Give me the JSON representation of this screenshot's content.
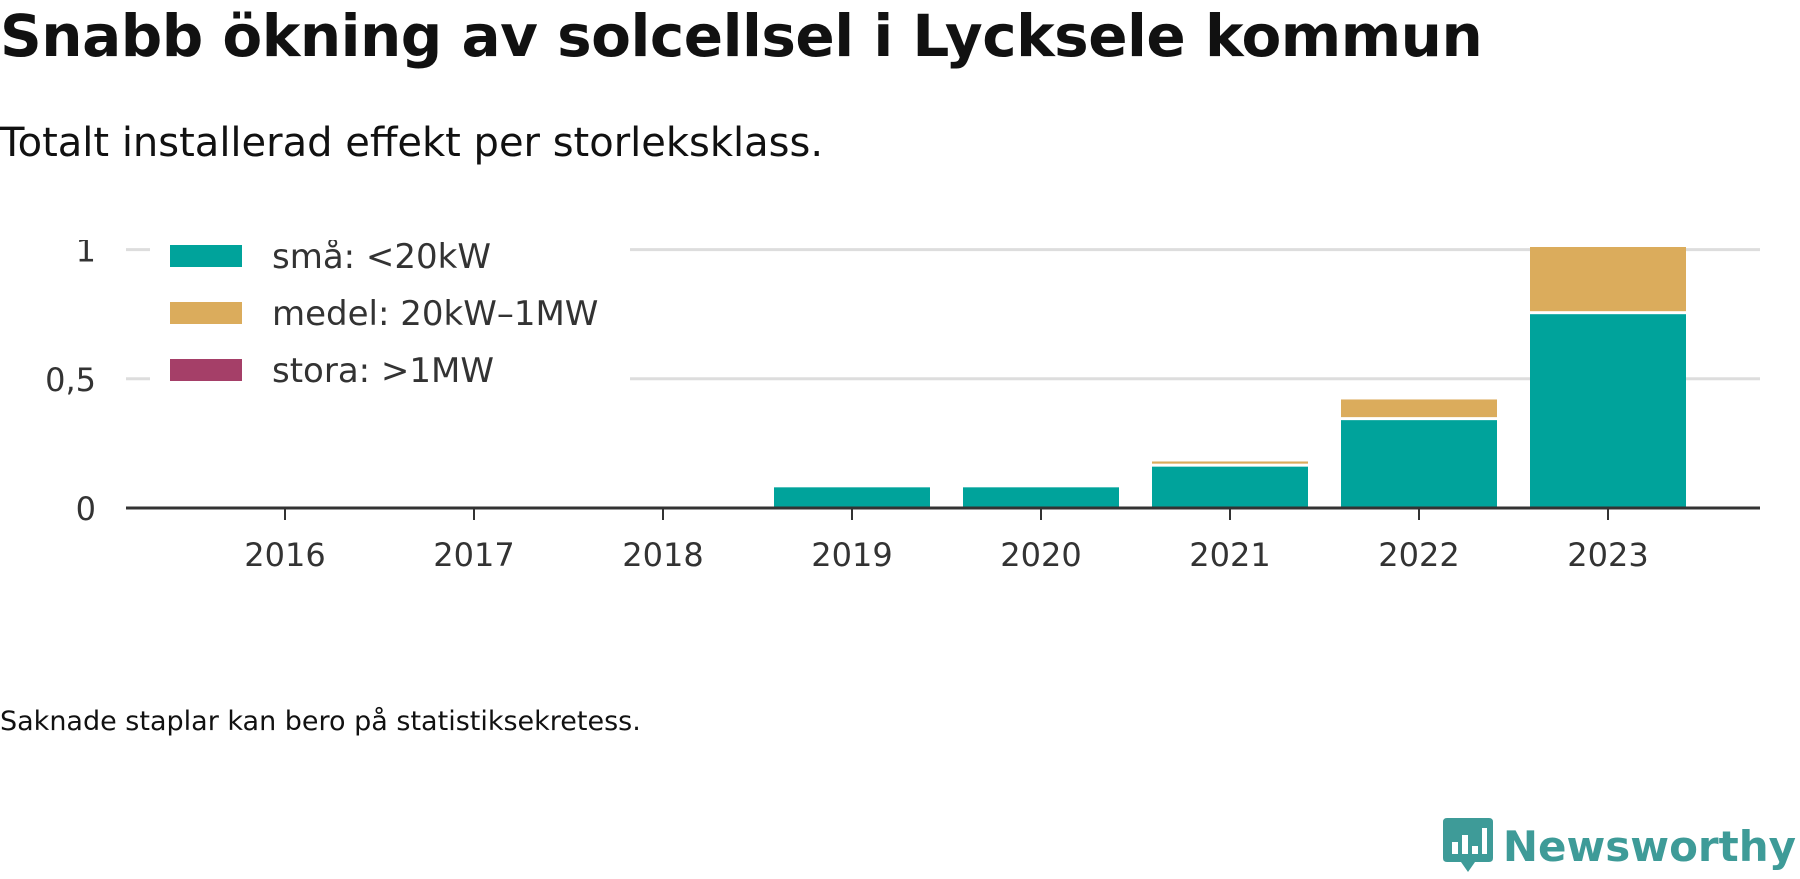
{
  "title": "Snabb ökning av solcellsel i Lycksele kommun",
  "subtitle": "Totalt installerad effekt per storleksklass.",
  "note": "Saknade staplar kan bero på statistiksekretess.",
  "brand": {
    "name": "Newsworthy",
    "color": "#3e9b98",
    "icon": "newsworthy-logo-icon"
  },
  "chart_data": {
    "type": "bar",
    "stacked": true,
    "categories": [
      "2016",
      "2017",
      "2018",
      "2019",
      "2020",
      "2021",
      "2022",
      "2023"
    ],
    "series": [
      {
        "name": "små: <20kW",
        "color": "#00a39b",
        "values": [
          0,
          0,
          0,
          0.08,
          0.08,
          0.16,
          0.34,
          0.75
        ]
      },
      {
        "name": "medel: 20kW–1MW",
        "color": "#dbac5c",
        "values": [
          0,
          0,
          0,
          0,
          0,
          0.02,
          0.08,
          0.26
        ]
      },
      {
        "name": "stora: >1MW",
        "color": "#a53f68",
        "values": [
          0,
          0,
          0,
          0,
          0,
          0,
          0,
          0
        ]
      }
    ],
    "y_ticks": [
      0,
      0.5,
      1
    ],
    "y_tick_labels": [
      "0",
      "0,5",
      "1"
    ],
    "ylim": [
      0,
      1.01
    ],
    "legend_position": "top-left",
    "grid": true,
    "xlabel": "",
    "ylabel": ""
  }
}
